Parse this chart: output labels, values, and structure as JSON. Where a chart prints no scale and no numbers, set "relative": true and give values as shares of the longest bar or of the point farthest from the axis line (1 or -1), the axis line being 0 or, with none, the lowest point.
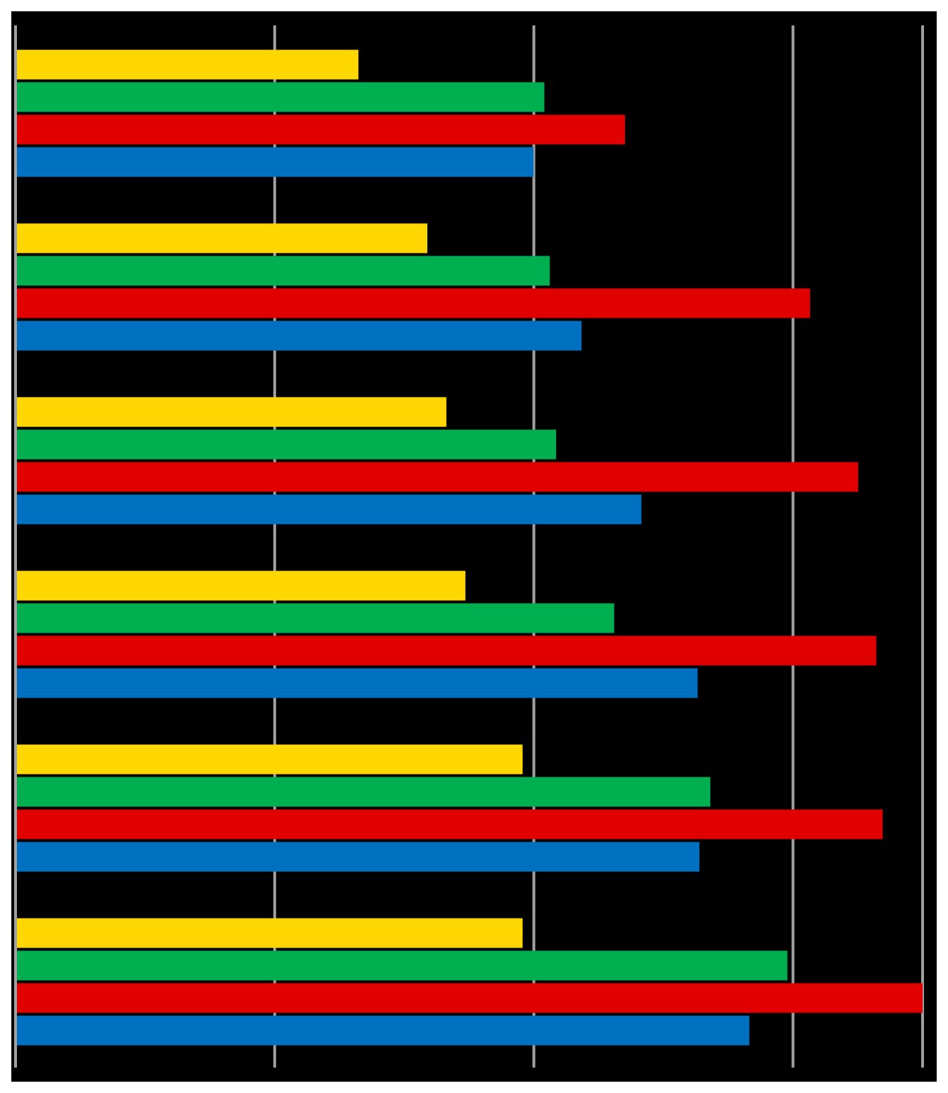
{
  "chart_data": {
    "type": "bar",
    "orientation": "horizontal",
    "relative": true,
    "grid": "x",
    "categories": [
      null,
      null,
      null,
      null,
      null,
      null
    ],
    "series": [
      {
        "color": "#ffd700",
        "values": [
          0.378,
          0.454,
          0.475,
          0.496,
          0.559,
          0.559
        ]
      },
      {
        "color": "#00b050",
        "values": [
          0.583,
          0.589,
          0.596,
          0.66,
          0.766,
          0.851
        ]
      },
      {
        "color": "#e00000",
        "values": [
          0.672,
          0.876,
          0.929,
          0.949,
          0.956,
          1
        ]
      },
      {
        "color": "#0070c0",
        "values": [
          0.571,
          0.624,
          0.69,
          0.752,
          0.754,
          0.809
        ]
      }
    ]
  }
}
